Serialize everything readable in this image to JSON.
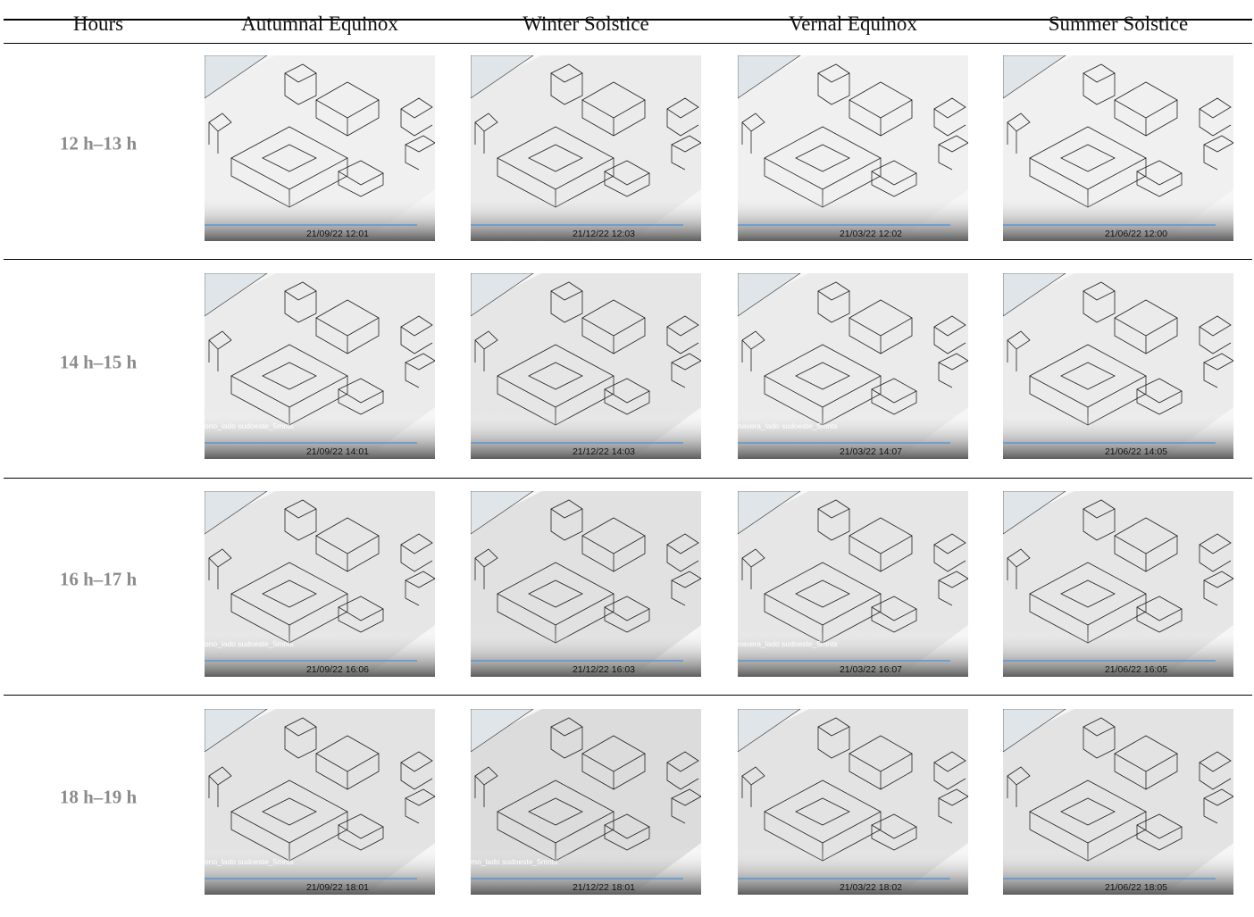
{
  "table": {
    "header": [
      "Hours",
      "Autumnal Equinox",
      "Winter Solstice",
      "Vernal Equinox",
      "Summer Solstice"
    ],
    "rows": [
      {
        "hours": "12 h–13 h",
        "cells": [
          {
            "timestamp": "21/09/22 12:01"
          },
          {
            "timestamp": "21/12/22 12:03"
          },
          {
            "timestamp": "21/03/22 12:02"
          },
          {
            "timestamp": "21/06/22 12:00"
          }
        ]
      },
      {
        "hours": "14 h–15 h",
        "cells": [
          {
            "timestamp": "21/09/22 14:01",
            "label": "ono_lado sudoeste_5mnts"
          },
          {
            "timestamp": "21/12/22 14:03"
          },
          {
            "timestamp": "21/03/22 14:07",
            "label": "navera_lado sudoeste_5mnts"
          },
          {
            "timestamp": "21/06/22 14:05"
          }
        ]
      },
      {
        "hours": "16 h–17 h",
        "cells": [
          {
            "timestamp": "21/09/22 16:06",
            "label": "ono_lado sudoeste_5mnts"
          },
          {
            "timestamp": "21/12/22 16:03"
          },
          {
            "timestamp": "21/03/22 16:07",
            "label": "navera_lado sudoeste_5mnts"
          },
          {
            "timestamp": "21/06/22 16:05"
          }
        ]
      },
      {
        "hours": "18 h–19 h",
        "cells": [
          {
            "timestamp": "21/09/22 18:01",
            "label": "ono_lado sudoeste_5mnts"
          },
          {
            "timestamp": "21/12/22 18:01",
            "label": "mo_lado sudoeste_5mnts"
          },
          {
            "timestamp": "21/03/22 18:02"
          },
          {
            "timestamp": "21/06/22 18:05"
          }
        ]
      }
    ]
  }
}
